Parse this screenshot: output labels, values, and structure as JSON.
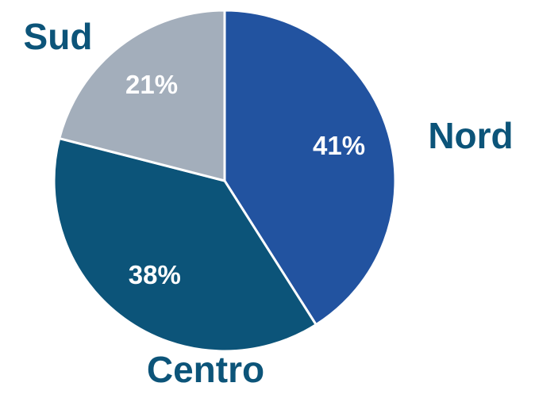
{
  "chart_data": {
    "type": "pie",
    "categories": [
      "Nord",
      "Centro",
      "Sud"
    ],
    "values": [
      41,
      38,
      21
    ],
    "value_labels": [
      "41%",
      "38%",
      "21%"
    ],
    "colors": [
      "#2253a0",
      "#0c5479",
      "#a3aebb"
    ],
    "label_color": "#0c5479",
    "start_angle": 0,
    "direction": "clockwise"
  }
}
